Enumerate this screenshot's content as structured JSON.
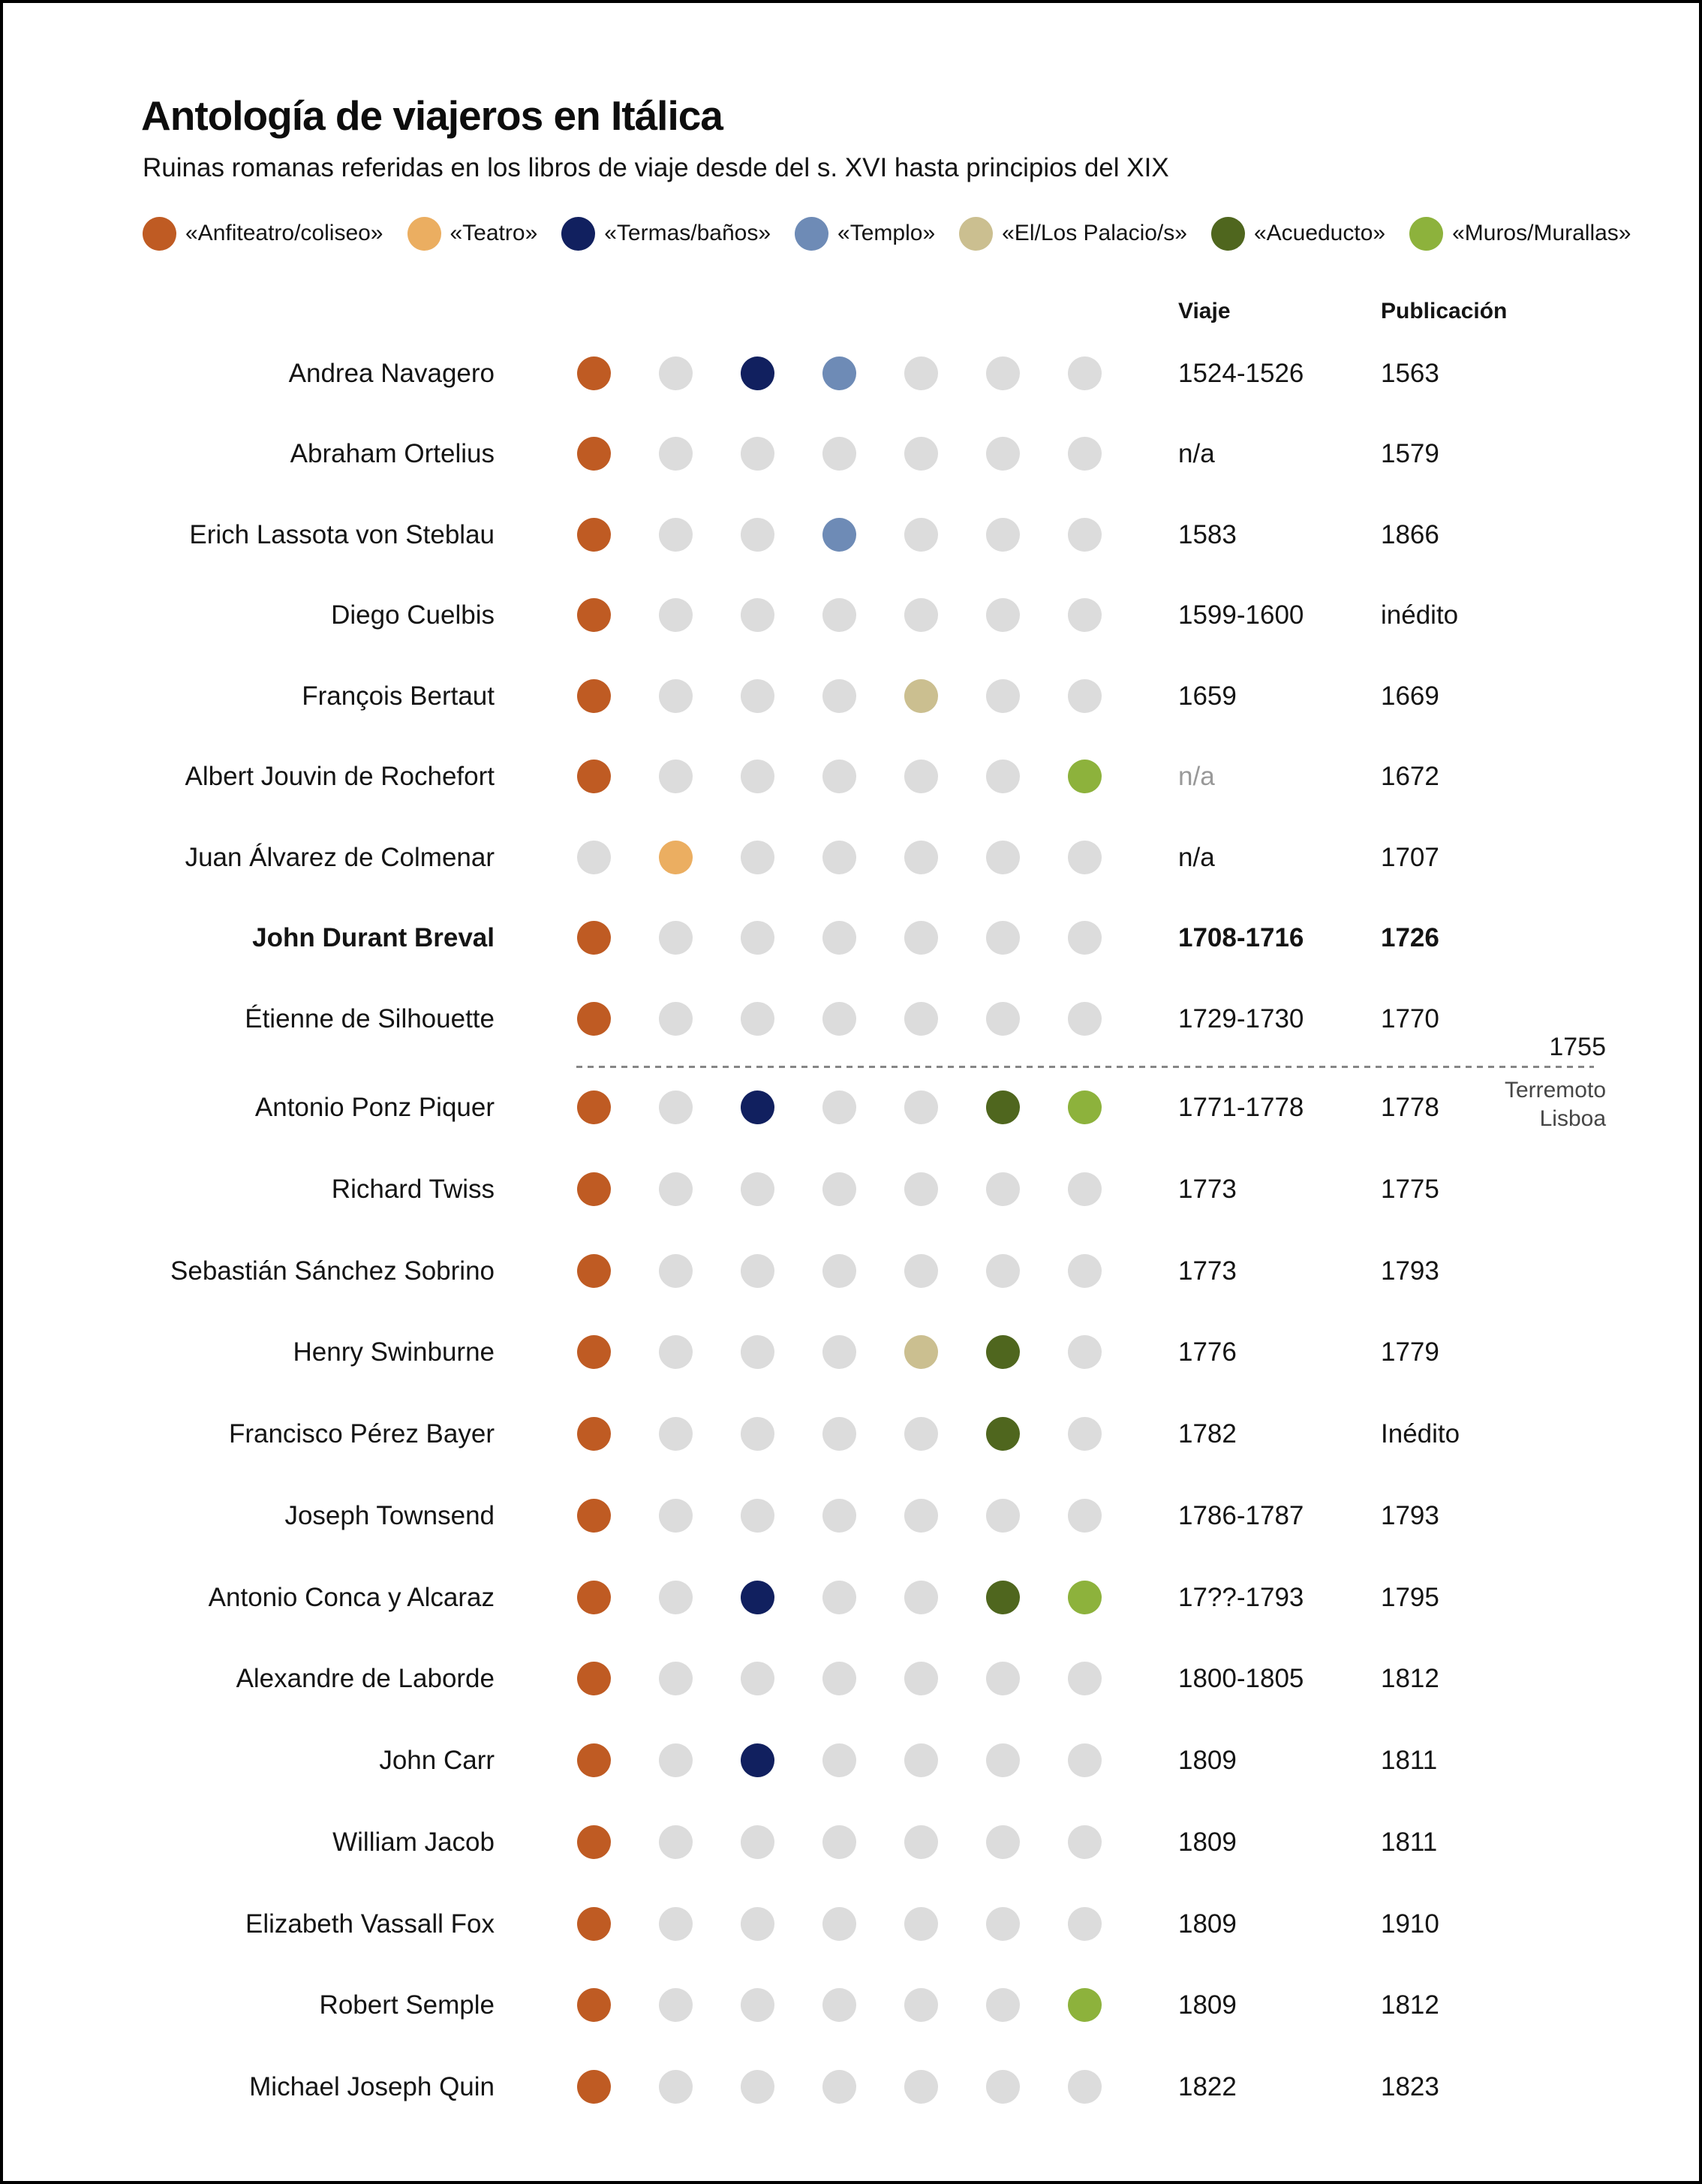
{
  "title": "Antología de viajeros en Itálica",
  "subtitle": "Ruinas romanas referidas en los libros de viaje desde del s. XVI hasta principios del XIX",
  "chart_data": {
    "type": "dot-matrix",
    "title": "Antología de viajeros en Itálica",
    "subtitle": "Ruinas romanas referidas en los libros de viaje desde del s. XVI hasta principios del XIX",
    "legend_position": "top",
    "legend": [
      {
        "key": "anfiteatro",
        "label": "«Anfiteatro/coliseo»",
        "color": "#BF5B23"
      },
      {
        "key": "teatro",
        "label": "«Teatro»",
        "color": "#EBAE61"
      },
      {
        "key": "termas",
        "label": "«Termas/baños»",
        "color": "#11205F"
      },
      {
        "key": "templo",
        "label": "«Templo»",
        "color": "#6E8BB6"
      },
      {
        "key": "palacio",
        "label": "«El/Los Palacio/s»",
        "color": "#CBBF90"
      },
      {
        "key": "acueducto",
        "label": "«Acueducto»",
        "color": "#4F661E"
      },
      {
        "key": "muros",
        "label": "«Muros/Murallas»",
        "color": "#8DB23C"
      }
    ],
    "inactive_color": "#DCDCDC",
    "columns": {
      "viaje": "Viaje",
      "publicacion": "Publicación"
    },
    "divider": {
      "after_row_index": 8,
      "year": "1755",
      "event_line1": "Terremoto",
      "event_line2": "Lisboa"
    },
    "rows": [
      {
        "name": "Andrea Navagero",
        "mentions": [
          "anfiteatro",
          "termas",
          "templo"
        ],
        "viaje": "1524-1526",
        "publicacion": "1563"
      },
      {
        "name": "Abraham Ortelius",
        "mentions": [
          "anfiteatro"
        ],
        "viaje": "n/a",
        "publicacion": "1579"
      },
      {
        "name": "Erich Lassota von Steblau",
        "mentions": [
          "anfiteatro",
          "templo"
        ],
        "viaje": "1583",
        "publicacion": "1866"
      },
      {
        "name": "Diego Cuelbis",
        "mentions": [
          "anfiteatro"
        ],
        "viaje": "1599-1600",
        "publicacion": "inédito"
      },
      {
        "name": "François Bertaut",
        "mentions": [
          "anfiteatro",
          "palacio"
        ],
        "viaje": "1659",
        "publicacion": "1669"
      },
      {
        "name": "Albert Jouvin de Rochefort",
        "mentions": [
          "anfiteatro",
          "muros"
        ],
        "viaje": "n/a",
        "viaje_muted": true,
        "publicacion": "1672"
      },
      {
        "name": "Juan Álvarez de Colmenar",
        "mentions": [
          "teatro"
        ],
        "viaje": "n/a",
        "publicacion": "1707"
      },
      {
        "name": "John Durant Breval",
        "bold": true,
        "mentions": [
          "anfiteatro"
        ],
        "viaje": "1708-1716",
        "publicacion": "1726"
      },
      {
        "name": "Étienne de Silhouette",
        "mentions": [
          "anfiteatro"
        ],
        "viaje": "1729-1730",
        "publicacion": "1770"
      },
      {
        "name": "Antonio Ponz Piquer",
        "mentions": [
          "anfiteatro",
          "termas",
          "acueducto",
          "muros"
        ],
        "viaje": "1771-1778",
        "publicacion": "1778"
      },
      {
        "name": "Richard Twiss",
        "mentions": [
          "anfiteatro"
        ],
        "viaje": "1773",
        "publicacion": "1775"
      },
      {
        "name": "Sebastián Sánchez Sobrino",
        "mentions": [
          "anfiteatro"
        ],
        "viaje": "1773",
        "publicacion": "1793"
      },
      {
        "name": "Henry Swinburne",
        "mentions": [
          "anfiteatro",
          "palacio",
          "acueducto"
        ],
        "viaje": "1776",
        "publicacion": "1779"
      },
      {
        "name": "Francisco Pérez Bayer",
        "mentions": [
          "anfiteatro",
          "acueducto"
        ],
        "viaje": "1782",
        "publicacion": "Inédito"
      },
      {
        "name": "Joseph Townsend",
        "mentions": [
          "anfiteatro"
        ],
        "viaje": "1786-1787",
        "publicacion": "1793"
      },
      {
        "name": "Antonio Conca y Alcaraz",
        "mentions": [
          "anfiteatro",
          "termas",
          "acueducto",
          "muros"
        ],
        "viaje": "17??-1793",
        "publicacion": "1795"
      },
      {
        "name": "Alexandre de Laborde",
        "mentions": [
          "anfiteatro"
        ],
        "viaje": "1800-1805",
        "publicacion": "1812"
      },
      {
        "name": "John Carr",
        "mentions": [
          "anfiteatro",
          "termas"
        ],
        "viaje": "1809",
        "publicacion": "1811"
      },
      {
        "name": "William Jacob",
        "mentions": [
          "anfiteatro"
        ],
        "viaje": "1809",
        "publicacion": "1811"
      },
      {
        "name": "Elizabeth Vassall Fox",
        "mentions": [
          "anfiteatro"
        ],
        "viaje": "1809",
        "publicacion": "1910"
      },
      {
        "name": "Robert Semple",
        "mentions": [
          "anfiteatro",
          "muros"
        ],
        "viaje": "1809",
        "publicacion": "1812"
      },
      {
        "name": "Michael Joseph Quin",
        "mentions": [
          "anfiteatro"
        ],
        "viaje": "1822",
        "publicacion": "1823"
      }
    ]
  }
}
